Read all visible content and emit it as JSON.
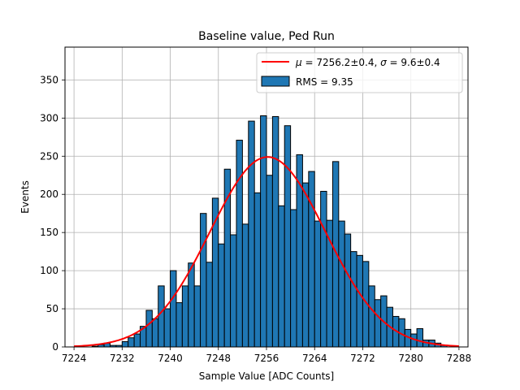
{
  "chart_data": {
    "type": "bar",
    "title": "Baseline value, Ped Run",
    "xlabel": "Sample Value [ADC Counts]",
    "ylabel": "Events",
    "xlim": [
      7222.5,
      7289.5
    ],
    "ylim": [
      0,
      393
    ],
    "grid": true,
    "xticks": [
      7224,
      7232,
      7240,
      7248,
      7256,
      7264,
      7272,
      7280,
      7288
    ],
    "yticks": [
      0,
      50,
      100,
      150,
      200,
      250,
      300,
      350
    ],
    "legend_position": "top-right",
    "histogram": {
      "name": "RMS = 9.35",
      "color": "#1f77b4",
      "bin_width": 1,
      "bin_starts": [
        7227,
        7228,
        7229,
        7230,
        7231,
        7232,
        7233,
        7234,
        7235,
        7236,
        7237,
        7238,
        7239,
        7240,
        7241,
        7242,
        7243,
        7244,
        7245,
        7246,
        7247,
        7248,
        7249,
        7250,
        7251,
        7252,
        7253,
        7254,
        7255,
        7256,
        7257,
        7258,
        7259,
        7260,
        7261,
        7262,
        7263,
        7264,
        7265,
        7266,
        7267,
        7268,
        7269,
        7270,
        7271,
        7272,
        7273,
        7274,
        7275,
        7276,
        7277,
        7278,
        7279,
        7280,
        7281,
        7282,
        7283,
        7284,
        7285
      ],
      "values": [
        1,
        3,
        5,
        2,
        2,
        7,
        12,
        17,
        27,
        48,
        37,
        80,
        50,
        100,
        58,
        80,
        110,
        80,
        175,
        111,
        195,
        135,
        233,
        147,
        271,
        161,
        296,
        202,
        303,
        225,
        302,
        185,
        290,
        180,
        252,
        215,
        230,
        165,
        204,
        166,
        243,
        165,
        148,
        125,
        120,
        112,
        80,
        62,
        67,
        52,
        40,
        37,
        23,
        17,
        24,
        9,
        9,
        5,
        2
      ]
    },
    "fit": {
      "name": "μ = 7256.2±0.4, σ = 9.6±0.4",
      "type": "gaussian",
      "mu": 7256.2,
      "sigma": 9.6,
      "amplitude": 249,
      "x_range": [
        7224,
        7288
      ],
      "color": "#ff0000"
    },
    "legend": [
      {
        "kind": "line",
        "mu_text": "7256.2±0.4",
        "sigma_text": "9.6±0.4",
        "color": "#ff0000"
      },
      {
        "kind": "patch",
        "label": "RMS = 9.35",
        "color": "#1f77b4"
      }
    ]
  }
}
